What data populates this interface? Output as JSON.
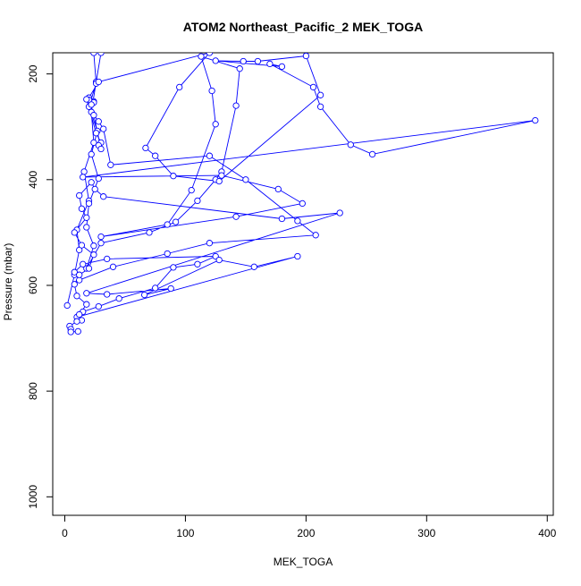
{
  "chart_data": {
    "type": "line",
    "title": "ATOM2 Northeast_Pacific_2 MEK_TOGA",
    "xlabel": "MEK_TOGA",
    "ylabel": "Pressure (mbar)",
    "xlim": [
      -10,
      405
    ],
    "ylim": [
      1035,
      160
    ],
    "y_inverted": true,
    "x_ticks": [
      0,
      100,
      200,
      300,
      400
    ],
    "y_ticks": [
      200,
      400,
      600,
      800,
      1000
    ],
    "grid": false,
    "markers": "open-circle",
    "color": "#0000ff",
    "series": [
      {
        "points": [
          [
            2,
            638
          ],
          [
            8,
            580
          ],
          [
            12,
            533
          ],
          [
            10,
            495
          ],
          [
            20,
            440
          ],
          [
            16,
            385
          ],
          [
            24,
            330
          ],
          [
            22,
            272
          ],
          [
            26,
            215
          ],
          [
            30,
            160
          ],
          [
            24,
            160
          ],
          [
            26,
            218
          ],
          [
            20,
            262
          ],
          [
            27,
            308
          ],
          [
            22,
            352
          ],
          [
            28,
            398
          ],
          [
            20,
            445
          ],
          [
            18,
            490
          ],
          [
            24,
            525
          ],
          [
            18,
            568
          ],
          [
            30,
            520
          ],
          [
            70,
            500
          ],
          [
            92,
            480
          ],
          [
            110,
            440
          ],
          [
            125,
            400
          ],
          [
            130,
            385
          ],
          [
            142,
            260
          ],
          [
            145,
            190
          ],
          [
            113,
            167
          ],
          [
            122,
            232
          ],
          [
            125,
            295
          ],
          [
            105,
            420
          ],
          [
            85,
            485
          ],
          [
            30,
            508
          ],
          [
            142,
            470
          ],
          [
            197,
            445
          ],
          [
            177,
            418
          ],
          [
            130,
            392
          ],
          [
            15,
            395
          ],
          [
            390,
            288
          ],
          [
            255,
            352
          ],
          [
            237,
            334
          ],
          [
            212,
            262
          ],
          [
            206,
            225
          ],
          [
            170,
            181
          ],
          [
            180,
            186
          ],
          [
            125,
            175
          ],
          [
            148,
            176
          ],
          [
            160,
            176
          ],
          [
            200,
            166
          ],
          [
            212,
            240
          ],
          [
            128,
            403
          ],
          [
            90,
            393
          ],
          [
            75,
            355
          ],
          [
            67,
            340
          ],
          [
            95,
            225
          ],
          [
            120,
            160
          ],
          [
            28,
            215
          ],
          [
            20,
            245
          ],
          [
            24,
            252
          ],
          [
            20,
            249
          ],
          [
            24,
            254
          ],
          [
            22,
            258
          ],
          [
            18,
            248
          ],
          [
            26,
            312
          ],
          [
            30,
            330
          ],
          [
            28,
            335
          ],
          [
            30,
            342
          ],
          [
            24,
            278
          ],
          [
            28,
            290
          ],
          [
            32,
            304
          ],
          [
            38,
            372
          ],
          [
            120,
            355
          ],
          [
            150,
            400
          ],
          [
            193,
            478
          ],
          [
            208,
            505
          ],
          [
            120,
            520
          ],
          [
            85,
            540
          ],
          [
            40,
            565
          ],
          [
            12,
            590
          ],
          [
            8,
            575
          ],
          [
            15,
            560
          ],
          [
            35,
            550
          ],
          [
            125,
            545
          ],
          [
            110,
            560
          ],
          [
            90,
            566
          ],
          [
            75,
            605
          ],
          [
            45,
            625
          ],
          [
            28,
            640
          ],
          [
            15,
            650
          ],
          [
            10,
            660
          ],
          [
            193,
            545
          ],
          [
            157,
            565
          ],
          [
            128,
            552
          ],
          [
            66,
            618
          ],
          [
            88,
            606
          ],
          [
            35,
            617
          ],
          [
            18,
            615
          ],
          [
            228,
            463
          ],
          [
            180,
            474
          ],
          [
            32,
            432
          ],
          [
            25,
            418
          ],
          [
            22,
            405
          ],
          [
            12,
            430
          ],
          [
            14,
            455
          ],
          [
            18,
            472
          ],
          [
            8,
            500
          ],
          [
            14,
            524
          ],
          [
            24,
            542
          ],
          [
            20,
            568
          ],
          [
            12,
            580
          ],
          [
            8,
            598
          ],
          [
            10,
            620
          ],
          [
            18,
            636
          ],
          [
            12,
            655
          ],
          [
            14,
            666
          ],
          [
            10,
            668
          ],
          [
            4,
            677
          ],
          [
            5,
            683
          ],
          [
            5,
            688
          ],
          [
            11,
            687
          ]
        ]
      }
    ]
  }
}
